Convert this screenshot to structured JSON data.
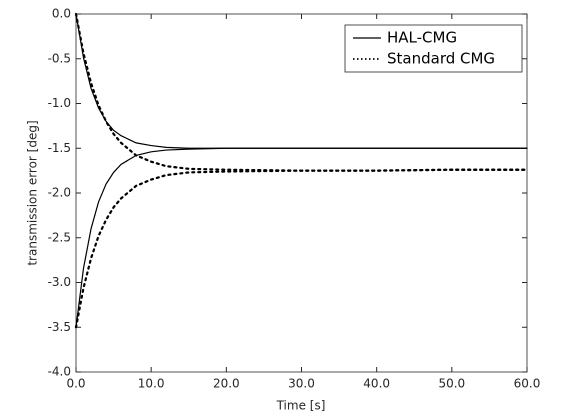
{
  "chart_data": {
    "type": "line",
    "xlabel": "Time [s]",
    "ylabel": "transmission error [deg]",
    "x": [
      0,
      1,
      2,
      3,
      4,
      5,
      6,
      8,
      10,
      12,
      15,
      20,
      30,
      40,
      50,
      60
    ],
    "series": [
      {
        "name": "HAL-CMG",
        "color": "#000000",
        "dash": "solid",
        "values": [
          [
            0,
            -0.49,
            -0.83,
            -1.05,
            -1.2,
            -1.3,
            -1.36,
            -1.44,
            -1.47,
            -1.49,
            -1.5,
            -1.5,
            -1.5,
            -1.5,
            -1.5,
            -1.5
          ],
          [
            -3.5,
            -2.84,
            -2.4,
            -2.1,
            -1.9,
            -1.77,
            -1.68,
            -1.58,
            -1.54,
            -1.52,
            -1.51,
            -1.5,
            -1.5,
            -1.5,
            -1.5,
            -1.5
          ]
        ]
      },
      {
        "name": "Standard CMG",
        "color": "#000000",
        "dash": "dotted",
        "values": [
          [
            0,
            -0.44,
            -0.77,
            -1.02,
            -1.2,
            -1.34,
            -1.44,
            -1.58,
            -1.65,
            -1.7,
            -1.73,
            -1.74,
            -1.75,
            -1.75,
            -1.74,
            -1.74
          ],
          [
            -3.5,
            -3.06,
            -2.73,
            -2.48,
            -2.3,
            -2.16,
            -2.06,
            -1.92,
            -1.85,
            -1.8,
            -1.77,
            -1.76,
            -1.75,
            -1.75,
            -1.74,
            -1.74
          ]
        ]
      }
    ],
    "xlim": [
      0,
      60
    ],
    "ylim": [
      -4,
      0
    ],
    "xticks": [
      {
        "value": 0,
        "label": "0.0"
      },
      {
        "value": 10,
        "label": "10.0"
      },
      {
        "value": 20,
        "label": "20.0"
      },
      {
        "value": 30,
        "label": "30.0"
      },
      {
        "value": 40,
        "label": "40.0"
      },
      {
        "value": 50,
        "label": "50.0"
      },
      {
        "value": 60,
        "label": "60.0"
      }
    ],
    "yticks": [
      {
        "value": -4,
        "label": "-4.0"
      },
      -3.5,
      {
        "value": -3,
        "label": "-3.0"
      },
      -2.5,
      {
        "value": -2,
        "label": "-2.0"
      },
      -1.5,
      {
        "value": -1,
        "label": "-1.0"
      },
      -0.5,
      {
        "value": 0,
        "label": "0.0"
      }
    ],
    "grid": false,
    "legend": "upper right"
  }
}
